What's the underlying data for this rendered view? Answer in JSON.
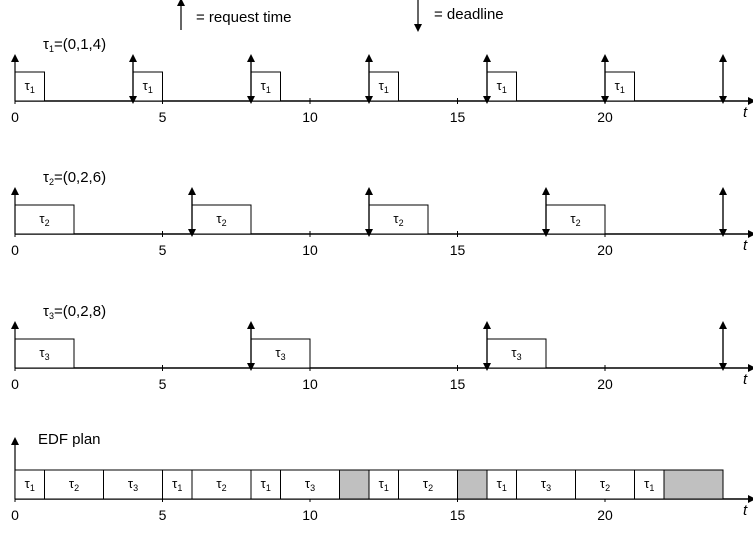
{
  "legend": {
    "request": "= request time",
    "deadline": "= deadline"
  },
  "axis": {
    "var": "t",
    "min": 0,
    "max": 24,
    "ticks": [
      "0",
      "5",
      "10",
      "15",
      "20"
    ],
    "tick_values": [
      0,
      5,
      10,
      15,
      20
    ]
  },
  "task_symbol": "τ",
  "tasks": [
    {
      "id": "1",
      "label_tail": "=(0,1,4)",
      "period": 4,
      "exec": 1,
      "arrow_times": [
        0,
        4,
        8,
        12,
        16,
        20,
        24
      ],
      "blocks": [
        {
          "start": 0,
          "end": 1
        },
        {
          "start": 4,
          "end": 5
        },
        {
          "start": 8,
          "end": 9
        },
        {
          "start": 12,
          "end": 13
        },
        {
          "start": 16,
          "end": 17
        },
        {
          "start": 20,
          "end": 21
        }
      ]
    },
    {
      "id": "2",
      "label_tail": "=(0,2,6)",
      "period": 6,
      "exec": 2,
      "arrow_times": [
        0,
        6,
        12,
        18,
        24
      ],
      "blocks": [
        {
          "start": 0,
          "end": 2
        },
        {
          "start": 6,
          "end": 8
        },
        {
          "start": 12,
          "end": 14
        },
        {
          "start": 18,
          "end": 20
        }
      ]
    },
    {
      "id": "3",
      "label_tail": "=(0,2,8)",
      "period": 8,
      "exec": 2,
      "arrow_times": [
        0,
        8,
        16,
        24
      ],
      "blocks": [
        {
          "start": 0,
          "end": 2
        },
        {
          "start": 8,
          "end": 10
        },
        {
          "start": 16,
          "end": 18
        }
      ]
    }
  ],
  "edf": {
    "title": "EDF plan",
    "blocks": [
      {
        "start": 0,
        "end": 1,
        "task": "1"
      },
      {
        "start": 1,
        "end": 3,
        "task": "2"
      },
      {
        "start": 3,
        "end": 5,
        "task": "3"
      },
      {
        "start": 5,
        "end": 6,
        "task": "1"
      },
      {
        "start": 6,
        "end": 8,
        "task": "2"
      },
      {
        "start": 8,
        "end": 9,
        "task": "1"
      },
      {
        "start": 9,
        "end": 11,
        "task": "3"
      },
      {
        "start": 11,
        "end": 12,
        "task": null
      },
      {
        "start": 12,
        "end": 13,
        "task": "1"
      },
      {
        "start": 13,
        "end": 15,
        "task": "2"
      },
      {
        "start": 15,
        "end": 16,
        "task": null
      },
      {
        "start": 16,
        "end": 17,
        "task": "1"
      },
      {
        "start": 17,
        "end": 19,
        "task": "3"
      },
      {
        "start": 19,
        "end": 21,
        "task": "2"
      },
      {
        "start": 21,
        "end": 22,
        "task": "1"
      },
      {
        "start": 22,
        "end": 24,
        "task": null
      }
    ]
  },
  "colors": {
    "ink": "#000000",
    "idle": "#c0c0c0"
  }
}
